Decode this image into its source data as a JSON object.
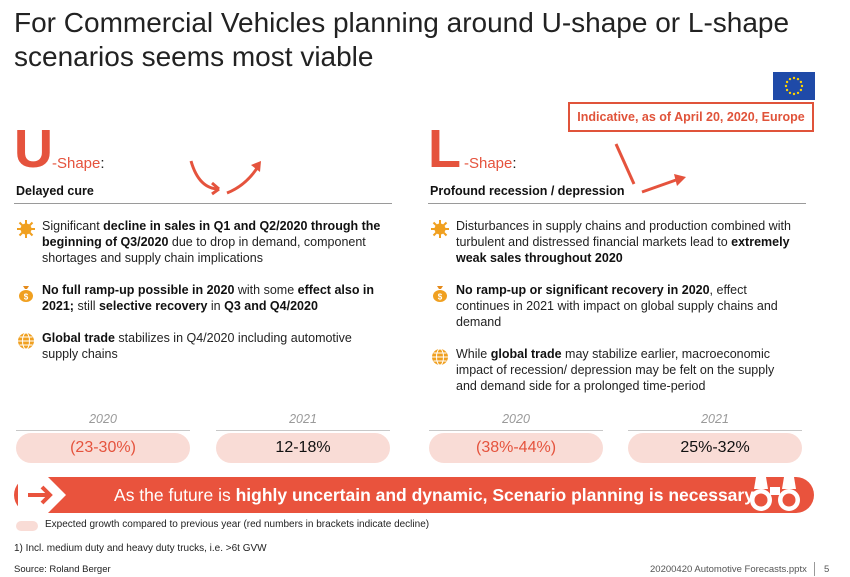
{
  "title": "For Commercial Vehicles planning around U-shape or L-shape scenarios seems most viable",
  "indicative": "Indicative, as of April 20, 2020, Europe",
  "colors": {
    "accent": "#e5533d",
    "pill": "#f9dcd6",
    "flag": "#1f4aa8"
  },
  "u_shape": {
    "letter": "U",
    "label": "-Shape",
    "colon": ":",
    "subtitle": "Delayed cure",
    "bullets": [
      {
        "icon": "virus-icon",
        "parts": [
          {
            "t": "Significant ",
            "b": false
          },
          {
            "t": "decline in sales in Q1 and Q2/2020 through the beginning of Q3/2020",
            "b": true
          },
          {
            "t": " due to drop in demand, component shortages and supply chain implications",
            "b": false
          }
        ]
      },
      {
        "icon": "money-bag-icon",
        "parts": [
          {
            "t": "No full ramp-up possible in 2020",
            "b": true
          },
          {
            "t": " with some ",
            "b": false
          },
          {
            "t": "effect also in 2021;",
            "b": true
          },
          {
            "t": " still ",
            "b": false
          },
          {
            "t": "selective recovery",
            "b": true
          },
          {
            "t": " in ",
            "b": false
          },
          {
            "t": "Q3 and Q4/2020",
            "b": true
          }
        ]
      },
      {
        "icon": "globe-icon",
        "parts": [
          {
            "t": "Global trade",
            "b": true
          },
          {
            "t": " stabilizes in Q4/2020 including automotive supply chains",
            "b": false
          }
        ]
      }
    ],
    "year1": "2020",
    "year2": "2021",
    "value1": "(23-30%)",
    "value2": "12-18%"
  },
  "l_shape": {
    "letter": "L",
    "label": "-Shape",
    "colon": ":",
    "subtitle": "Profound recession / depression",
    "bullets": [
      {
        "icon": "virus-icon",
        "parts": [
          {
            "t": "Disturbances in supply chains and production combined with turbulent and distressed financial markets lead to ",
            "b": false
          },
          {
            "t": "extremely weak sales throughout 2020",
            "b": true
          }
        ]
      },
      {
        "icon": "money-bag-icon",
        "parts": [
          {
            "t": "No ramp-up or significant recovery in 2020",
            "b": true
          },
          {
            "t": ", effect continues in 2021 with impact on global supply chains and demand",
            "b": false
          }
        ]
      },
      {
        "icon": "globe-icon",
        "parts": [
          {
            "t": "While ",
            "b": false
          },
          {
            "t": "global trade",
            "b": true
          },
          {
            "t": " may stabilize earlier, macroeconomic impact of recession/ depression may be felt on the supply and demand side for a prolonged time-period",
            "b": false
          }
        ]
      }
    ],
    "year1": "2020",
    "year2": "2021",
    "value1": "(38%-44%)",
    "value2": "25%-32%"
  },
  "banner": {
    "parts": [
      {
        "t": "As the future is ",
        "b": false
      },
      {
        "t": "highly uncertain and dynamic, Scenario planning is necessary",
        "b": true
      }
    ]
  },
  "legend": "Expected growth compared to previous year (red numbers in brackets indicate decline)",
  "footnote": "1) Incl. medium duty and heavy duty trucks, i.e. >6t GVW",
  "source": "Source: Roland Berger",
  "filename": "20200420 Automotive Forecasts.pptx",
  "page_number": "5"
}
